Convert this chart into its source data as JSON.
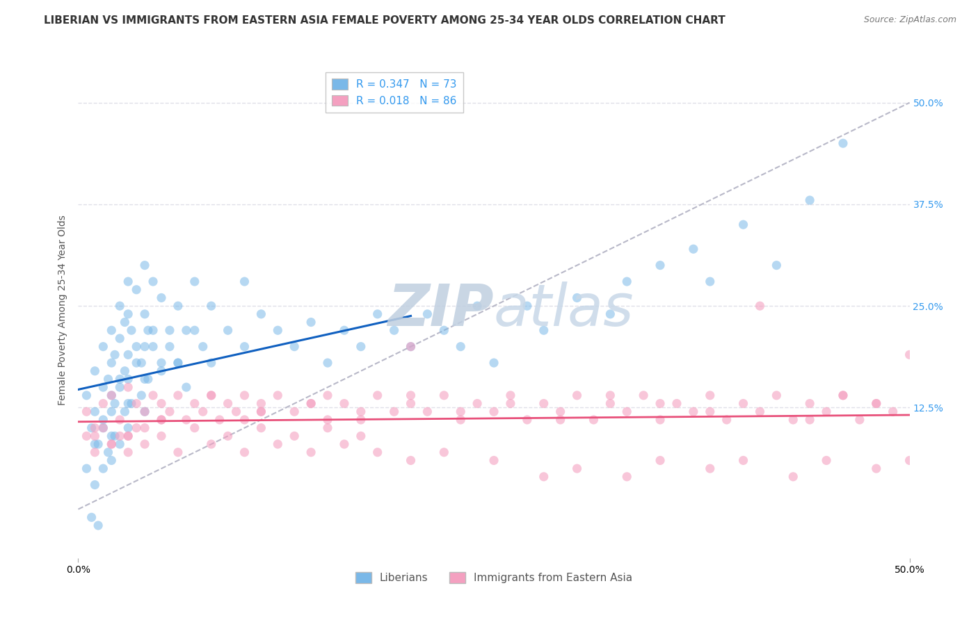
{
  "title": "LIBERIAN VS IMMIGRANTS FROM EASTERN ASIA FEMALE POVERTY AMONG 25-34 YEAR OLDS CORRELATION CHART",
  "source": "Source: ZipAtlas.com",
  "ylabel": "Female Poverty Among 25-34 Year Olds",
  "xlim": [
    0,
    0.5
  ],
  "ylim": [
    -0.06,
    0.55
  ],
  "right_ytick_labels": [
    "12.5%",
    "25.0%",
    "37.5%",
    "50.0%"
  ],
  "right_ytick_vals": [
    0.125,
    0.25,
    0.375,
    0.5
  ],
  "legend_entries": [
    {
      "label": "R = 0.347   N = 73"
    },
    {
      "label": "R = 0.018   N = 86"
    }
  ],
  "series1_name": "Liberians",
  "series2_name": "Immigrants from Eastern Asia",
  "series1_color": "#7ab8e8",
  "series2_color": "#f4a0c0",
  "trendline1_color": "#1060c0",
  "trendline2_color": "#e8507a",
  "diagonal_color": "#b8b8c8",
  "grid_color": "#e0e0e8",
  "background_color": "#ffffff",
  "series1_x": [
    0.005,
    0.008,
    0.01,
    0.01,
    0.012,
    0.015,
    0.015,
    0.015,
    0.018,
    0.02,
    0.02,
    0.02,
    0.02,
    0.022,
    0.022,
    0.025,
    0.025,
    0.025,
    0.028,
    0.028,
    0.03,
    0.03,
    0.03,
    0.03,
    0.032,
    0.035,
    0.035,
    0.038,
    0.04,
    0.04,
    0.04,
    0.042,
    0.045,
    0.045,
    0.05,
    0.05,
    0.055,
    0.06,
    0.06,
    0.065,
    0.07,
    0.075,
    0.08,
    0.09,
    0.1,
    0.1,
    0.11,
    0.12,
    0.13,
    0.14,
    0.15,
    0.16,
    0.17,
    0.18,
    0.19,
    0.2,
    0.21,
    0.22,
    0.23,
    0.24,
    0.25,
    0.27,
    0.28,
    0.3,
    0.32,
    0.33,
    0.35,
    0.37,
    0.38,
    0.4,
    0.42,
    0.44,
    0.46
  ],
  "series1_y": [
    0.14,
    0.1,
    0.17,
    0.12,
    0.08,
    0.2,
    0.15,
    0.11,
    0.16,
    0.22,
    0.18,
    0.14,
    0.09,
    0.19,
    0.13,
    0.25,
    0.21,
    0.16,
    0.23,
    0.17,
    0.28,
    0.24,
    0.19,
    0.13,
    0.22,
    0.27,
    0.2,
    0.18,
    0.3,
    0.24,
    0.16,
    0.22,
    0.28,
    0.2,
    0.26,
    0.18,
    0.22,
    0.25,
    0.18,
    0.22,
    0.28,
    0.2,
    0.25,
    0.22,
    0.28,
    0.2,
    0.24,
    0.22,
    0.2,
    0.23,
    0.18,
    0.22,
    0.2,
    0.24,
    0.22,
    0.2,
    0.24,
    0.22,
    0.2,
    0.25,
    0.18,
    0.25,
    0.22,
    0.26,
    0.24,
    0.28,
    0.3,
    0.32,
    0.28,
    0.35,
    0.3,
    0.38,
    0.45
  ],
  "series1_low_x": [
    0.005,
    0.008,
    0.01,
    0.01,
    0.012,
    0.015,
    0.015,
    0.018,
    0.02,
    0.02,
    0.022,
    0.025,
    0.025,
    0.028,
    0.03,
    0.03,
    0.032,
    0.035,
    0.038,
    0.04,
    0.04,
    0.042,
    0.045,
    0.05,
    0.055,
    0.06,
    0.065,
    0.07,
    0.08
  ],
  "series1_low_y": [
    0.05,
    -0.01,
    0.08,
    0.03,
    -0.02,
    0.1,
    0.05,
    0.07,
    0.12,
    0.06,
    0.09,
    0.15,
    0.08,
    0.12,
    0.16,
    0.1,
    0.13,
    0.18,
    0.14,
    0.2,
    0.12,
    0.16,
    0.22,
    0.17,
    0.2,
    0.18,
    0.15,
    0.22,
    0.18
  ],
  "series2_x": [
    0.005,
    0.01,
    0.015,
    0.02,
    0.025,
    0.03,
    0.03,
    0.035,
    0.04,
    0.04,
    0.045,
    0.05,
    0.05,
    0.055,
    0.06,
    0.065,
    0.07,
    0.075,
    0.08,
    0.085,
    0.09,
    0.095,
    0.1,
    0.1,
    0.11,
    0.11,
    0.12,
    0.13,
    0.14,
    0.15,
    0.15,
    0.16,
    0.17,
    0.18,
    0.19,
    0.2,
    0.2,
    0.21,
    0.22,
    0.23,
    0.24,
    0.25,
    0.26,
    0.27,
    0.28,
    0.29,
    0.3,
    0.31,
    0.32,
    0.33,
    0.34,
    0.35,
    0.36,
    0.37,
    0.38,
    0.39,
    0.4,
    0.41,
    0.42,
    0.43,
    0.44,
    0.45,
    0.46,
    0.47,
    0.48,
    0.49,
    0.5,
    0.48,
    0.46,
    0.44,
    0.41,
    0.38,
    0.35,
    0.32,
    0.29,
    0.26,
    0.23,
    0.2,
    0.17,
    0.14,
    0.11,
    0.08,
    0.05,
    0.03,
    0.02,
    0.01
  ],
  "series2_y": [
    0.12,
    0.1,
    0.13,
    0.14,
    0.11,
    0.15,
    0.09,
    0.13,
    0.12,
    0.1,
    0.14,
    0.11,
    0.13,
    0.12,
    0.14,
    0.11,
    0.13,
    0.12,
    0.14,
    0.11,
    0.13,
    0.12,
    0.14,
    0.11,
    0.13,
    0.12,
    0.14,
    0.12,
    0.13,
    0.14,
    0.11,
    0.13,
    0.12,
    0.14,
    0.12,
    0.2,
    0.13,
    0.12,
    0.14,
    0.11,
    0.13,
    0.12,
    0.14,
    0.11,
    0.13,
    0.12,
    0.14,
    0.11,
    0.13,
    0.12,
    0.14,
    0.11,
    0.13,
    0.12,
    0.14,
    0.11,
    0.13,
    0.12,
    0.14,
    0.11,
    0.13,
    0.12,
    0.14,
    0.11,
    0.13,
    0.12,
    0.19,
    0.13,
    0.14,
    0.11,
    0.25,
    0.12,
    0.13,
    0.14,
    0.11,
    0.13,
    0.12,
    0.14,
    0.11,
    0.13,
    0.12,
    0.14,
    0.11,
    0.09,
    0.08,
    0.09
  ],
  "series2_low_x": [
    0.005,
    0.01,
    0.015,
    0.02,
    0.025,
    0.03,
    0.035,
    0.04,
    0.05,
    0.06,
    0.07,
    0.08,
    0.09,
    0.1,
    0.11,
    0.12,
    0.13,
    0.14,
    0.15,
    0.16,
    0.17,
    0.18,
    0.2,
    0.22,
    0.25,
    0.28,
    0.3,
    0.33,
    0.35,
    0.38,
    0.4,
    0.43,
    0.45,
    0.48,
    0.5
  ],
  "series2_low_y": [
    0.09,
    0.07,
    0.1,
    0.08,
    0.09,
    0.07,
    0.1,
    0.08,
    0.09,
    0.07,
    0.1,
    0.08,
    0.09,
    0.07,
    0.1,
    0.08,
    0.09,
    0.07,
    0.1,
    0.08,
    0.09,
    0.07,
    0.06,
    0.07,
    0.06,
    0.04,
    0.05,
    0.04,
    0.06,
    0.05,
    0.06,
    0.04,
    0.06,
    0.05,
    0.06
  ],
  "title_fontsize": 11,
  "axis_fontsize": 10,
  "tick_fontsize": 10,
  "legend_fontsize": 11,
  "watermark_color": "#ccd8e8",
  "watermark_fontsize": 60
}
